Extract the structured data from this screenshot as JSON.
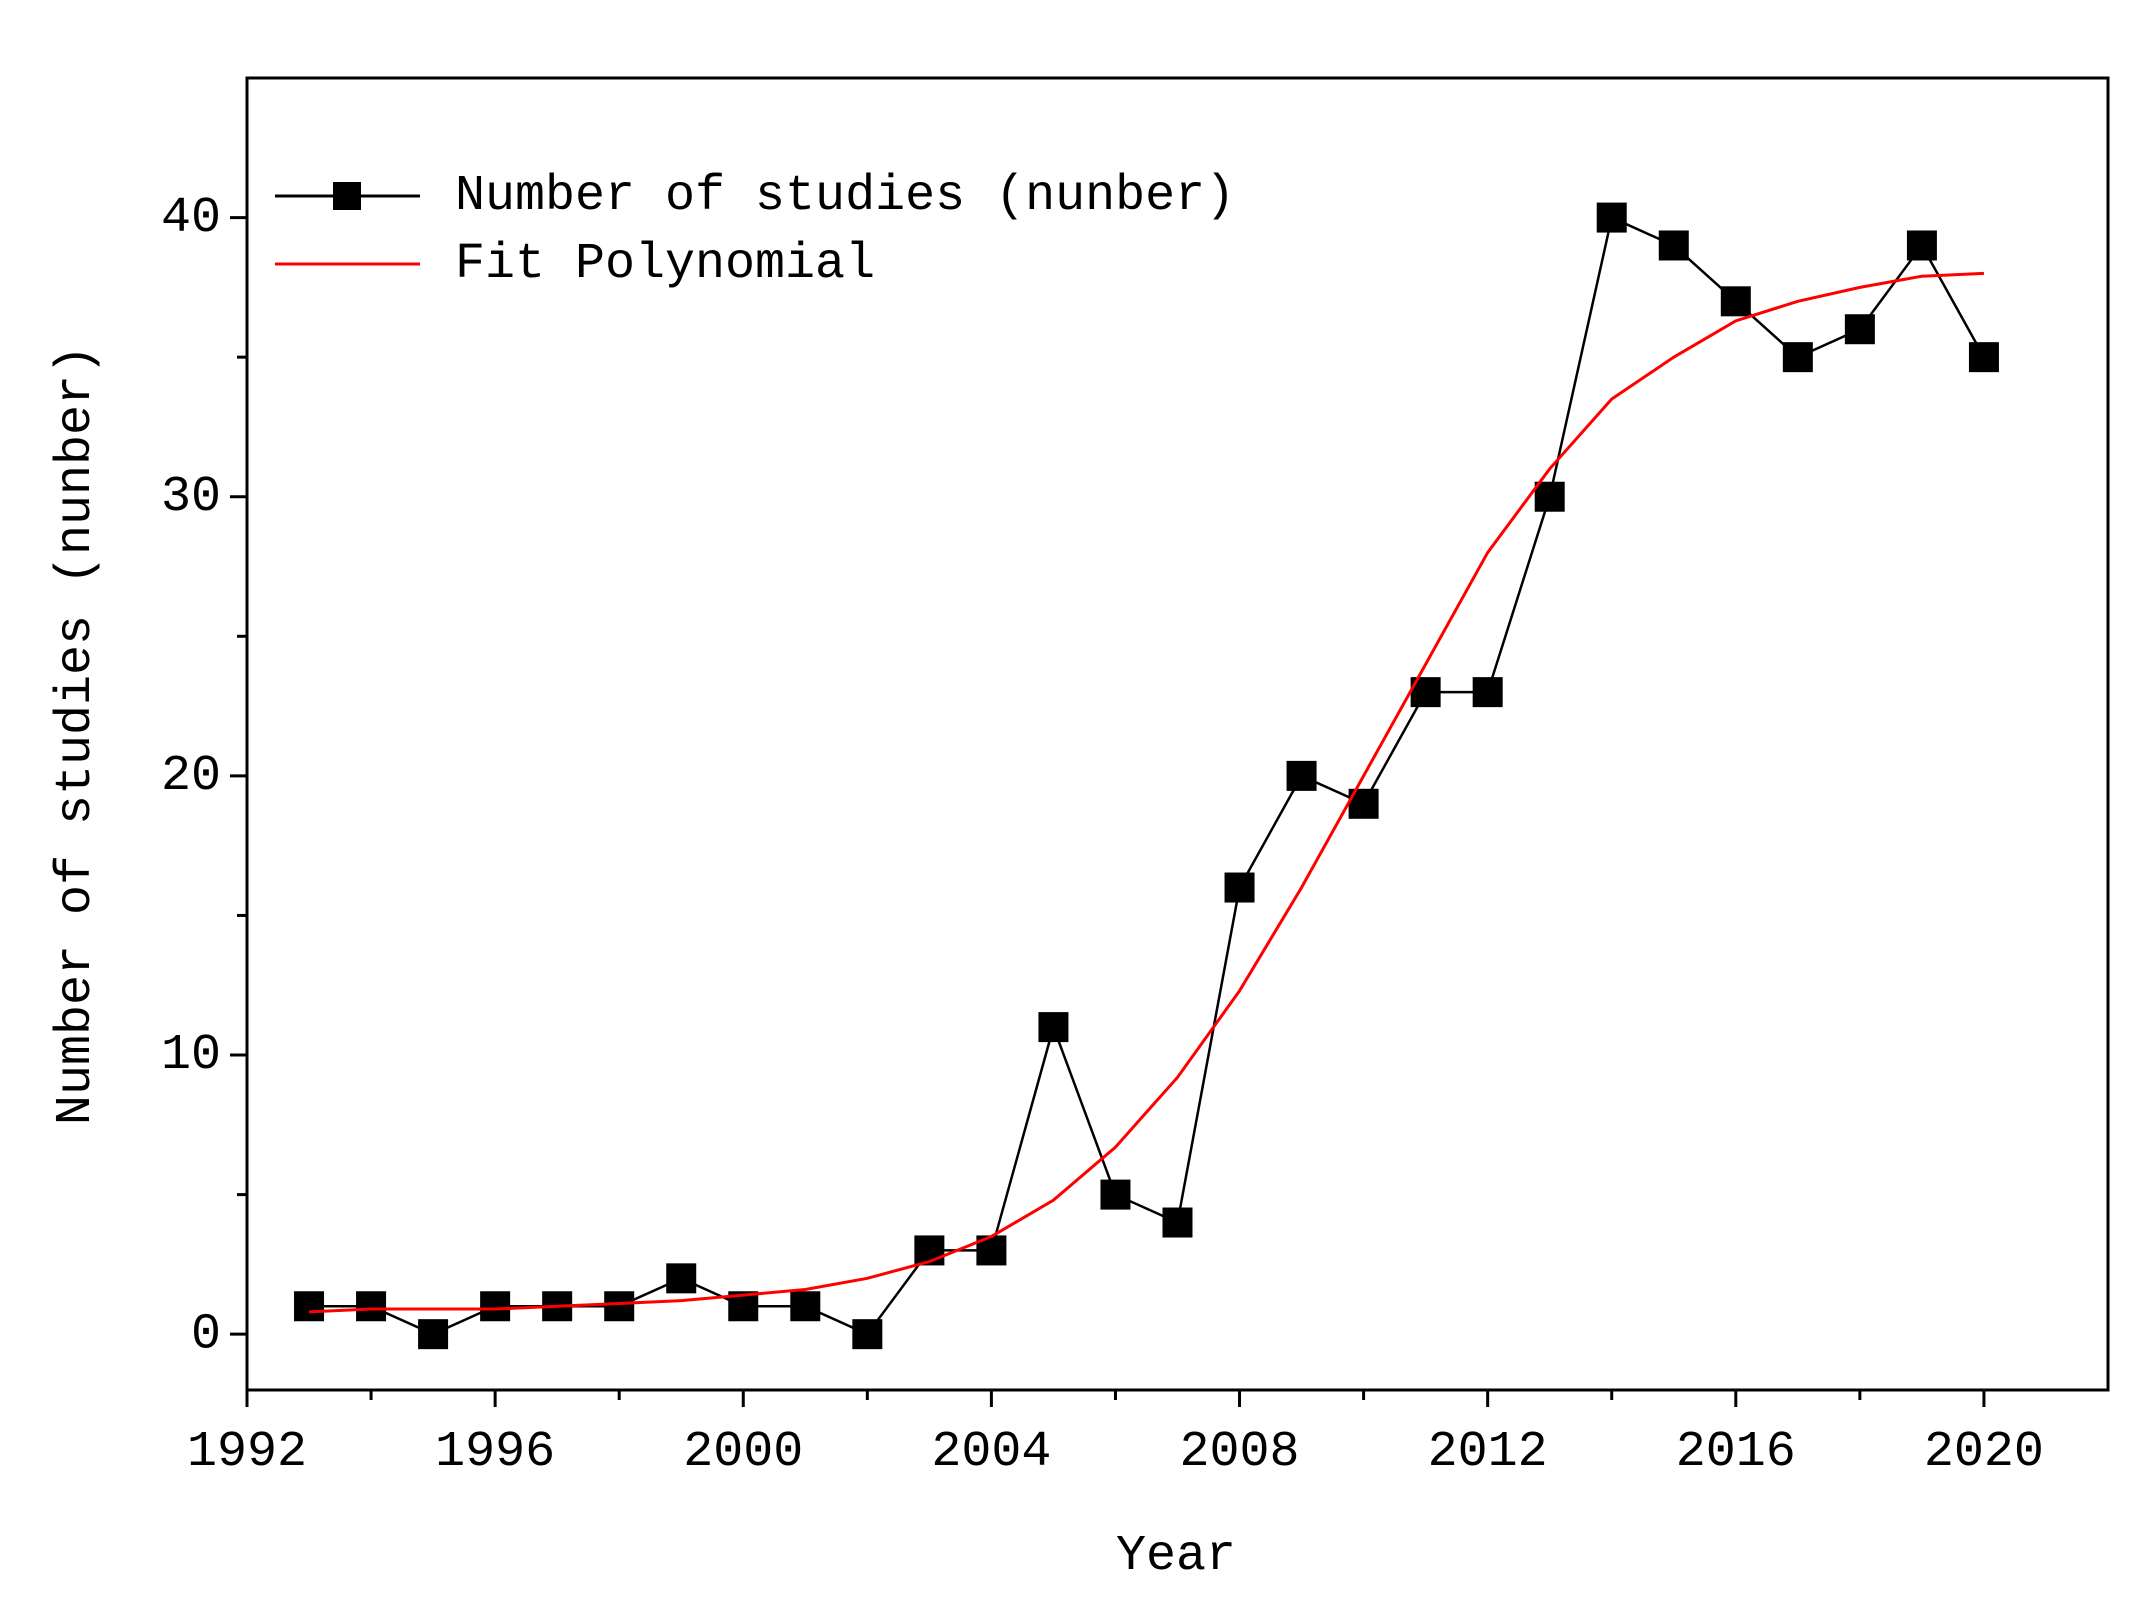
{
  "chart_data": {
    "type": "line",
    "x_label": "Year",
    "y_label": "Number of studies (nunber)",
    "x": [
      1993,
      1994,
      1995,
      1996,
      1997,
      1998,
      1999,
      2000,
      2001,
      2002,
      2003,
      2004,
      2005,
      2006,
      2007,
      2008,
      2009,
      2010,
      2011,
      2012,
      2013,
      2014,
      2015,
      2016,
      2017,
      2018,
      2019,
      2020
    ],
    "series": [
      {
        "name": "Number of studies (nunber)",
        "color": "#000000",
        "marker": "square",
        "values": [
          1,
          1,
          0,
          1,
          1,
          1,
          2,
          1,
          1,
          0,
          3,
          3,
          11,
          5,
          4,
          16,
          20,
          19,
          23,
          23,
          30,
          40,
          39,
          37,
          35,
          36,
          39,
          35
        ]
      },
      {
        "name": "Fit Polynomial",
        "color": "#ff0000",
        "marker": "none",
        "values": [
          0.8,
          0.9,
          0.9,
          0.9,
          1.0,
          1.1,
          1.2,
          1.4,
          1.6,
          2.0,
          2.6,
          3.5,
          4.8,
          6.7,
          9.2,
          12.3,
          16,
          20,
          24,
          28,
          31,
          33.5,
          35,
          36.3,
          37,
          37.5,
          37.9,
          38
        ]
      }
    ],
    "xlim": [
      1992,
      2022
    ],
    "xticks": [
      1992,
      1996,
      2000,
      2004,
      2008,
      2012,
      2016,
      2020
    ],
    "ylim": [
      -2,
      45
    ],
    "yticks": [
      0,
      10,
      20,
      30,
      40
    ],
    "grid": false,
    "legend": "top-left"
  }
}
